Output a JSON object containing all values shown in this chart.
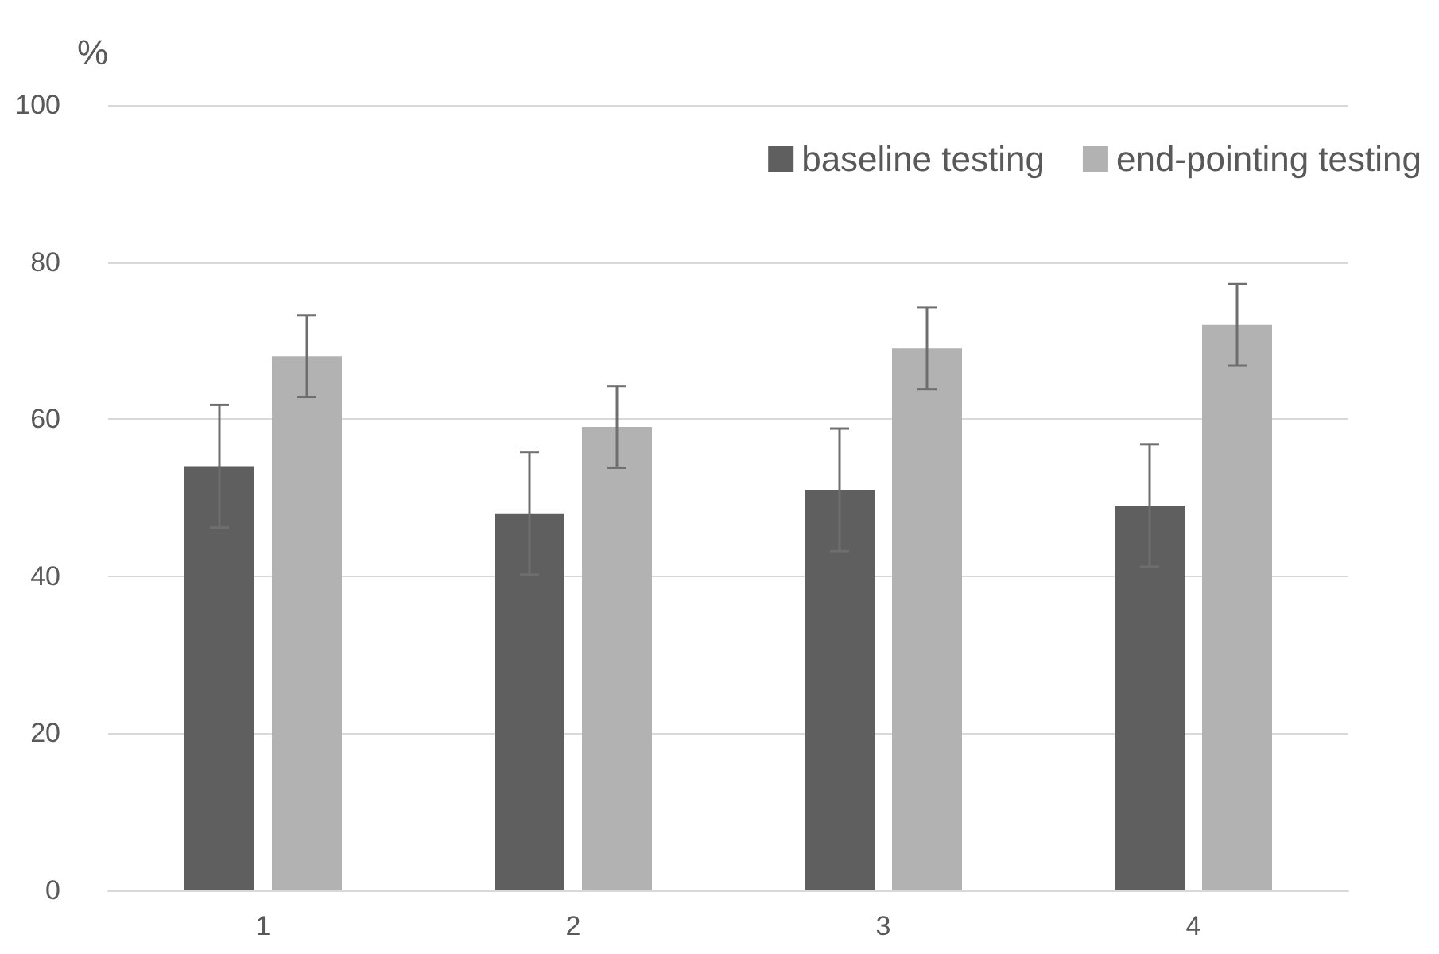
{
  "chart_data": {
    "type": "bar",
    "ylabel": "%",
    "categories": [
      "1",
      "2",
      "3",
      "4"
    ],
    "series": [
      {
        "name": "baseline testing",
        "color": "#5f5f5f",
        "values": [
          54,
          48,
          51,
          49
        ],
        "errors": [
          7.8,
          7.8,
          7.8,
          7.8
        ]
      },
      {
        "name": "end-pointing testing",
        "color": "#b2b2b2",
        "values": [
          68,
          59,
          69,
          72
        ],
        "errors": [
          5.2,
          5.2,
          5.2,
          5.2
        ]
      }
    ],
    "ylim": [
      0,
      100
    ],
    "yticks": [
      0,
      20,
      40,
      60,
      80,
      100
    ],
    "grid": "y",
    "legend": "top right"
  }
}
